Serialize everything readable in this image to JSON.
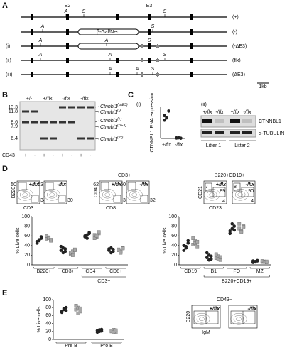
{
  "panel_a": {
    "letter": "A",
    "exon_labels": [
      "E2",
      "E3"
    ],
    "scale": "1kb",
    "insert": "β-Gal/Neo",
    "rows": [
      {
        "label": "(+)",
        "sites": [
          "A",
          "S",
          "S"
        ]
      },
      {
        "label": "(-)",
        "sites": [
          "A",
          "S"
        ]
      },
      {
        "marker": "(i)",
        "label": "(-ΔE3)",
        "sites": [
          "A",
          "A",
          "S"
        ]
      },
      {
        "marker": "(ii)",
        "label": "(flx)",
        "sites": [
          "A",
          "A",
          "S"
        ]
      },
      {
        "marker": "(iii)",
        "label": "(ΔE3)",
        "sites": [
          "A",
          "A",
          "S"
        ]
      }
    ]
  },
  "panel_b": {
    "letter": "B",
    "lanes": [
      "+/-",
      "+/flx",
      "-/flx",
      "-/flx"
    ],
    "sizes": [
      13.3,
      11.8,
      8.6,
      7.9,
      6.4
    ],
    "bands": [
      {
        "gene": "Ctnnbl1",
        "allele": "(-ΔE3)"
      },
      {
        "gene": "Ctnnbl1",
        "allele": "(-)"
      },
      {
        "gene": "Ctnnbl1",
        "allele": "(+)"
      },
      {
        "gene": "Ctnnbl1",
        "allele": "(ΔE3)"
      },
      {
        "gene": "Ctnnbl1",
        "allele": "(flx)"
      }
    ],
    "cd43_label": "CD43",
    "cd43": [
      "+",
      "-",
      "+",
      "-",
      "+",
      "-",
      "+",
      "-"
    ]
  },
  "panel_c": {
    "letter": "C",
    "i": {
      "label": "(i)",
      "y_label": "CTNNBL1 RNA expression",
      "categories": [
        "+/flx",
        "-/flx"
      ],
      "ylim": [
        0,
        140
      ],
      "series": [
        {
          "marker": "circle",
          "color": "#222222",
          "values": [
            [
              100,
              90,
              120,
              80
            ],
            [
              2,
              3,
              1,
              2
            ]
          ]
        }
      ]
    },
    "ii": {
      "label": "(ii)",
      "lanes": [
        "+/flx",
        "-/flx",
        "+/flx",
        "-/flx"
      ],
      "proteins": [
        "CTNNBL1",
        "α-TUBULIN"
      ],
      "litters": [
        "Litter 1",
        "Litter 2"
      ]
    }
  },
  "panel_d": {
    "letter": "D",
    "flow_groups": [
      {
        "y_axis": "B220",
        "x_axis": "CD3",
        "plots": [
          {
            "genotype": "+/flx",
            "gates": [
              50,
              34
            ]
          },
          {
            "genotype": "-/flx",
            "gates": [
              53,
              30
            ]
          }
        ]
      },
      {
        "title": "CD3+",
        "y_axis": "CD4",
        "x_axis": "CD8",
        "plots": [
          {
            "genotype": "+/flx",
            "gates": [
              62,
              31
            ]
          },
          {
            "genotype": "-/flx",
            "gates": [
              60,
              32
            ]
          }
        ]
      },
      {
        "title": "B220+CD19+",
        "y_axis": "CD21",
        "x_axis": "CD23",
        "plots": [
          {
            "genotype": "+/flx",
            "gates": [
              7,
              89,
              4
            ]
          },
          {
            "genotype": "-/flx",
            "gates": [
              8,
              90,
              4
            ]
          }
        ]
      }
    ],
    "charts": [
      {
        "y_label": "% Live cells",
        "categories": [
          "B220+",
          "CD3+",
          "CD4+",
          "CD8+"
        ],
        "group_label": "CD3+",
        "ylim": [
          0,
          100
        ],
        "yticks": [
          0,
          20,
          40,
          60,
          80,
          100
        ],
        "series": [
          {
            "marker": "circle",
            "color": "#222222",
            "values": [
              [
                48,
                52,
                55,
                45,
                50,
                58
              ],
              [
                30,
                35,
                28,
                38,
                25,
                33
              ],
              [
                60,
                55,
                65,
                58,
                62,
                67
              ],
              [
                30,
                35,
                28,
                33,
                25,
                32
              ]
            ]
          },
          {
            "marker": "square",
            "color": "#a8a8a8",
            "values": [
              [
                53,
                57,
                50,
                60,
                55,
                52
              ],
              [
                22,
                28,
                30,
                25,
                20,
                32
              ],
              [
                62,
                58,
                65,
                55,
                60,
                68
              ],
              [
                32,
                28,
                35,
                30,
                25,
                34
              ]
            ]
          }
        ]
      },
      {
        "y_label": "% Live cells",
        "categories": [
          "CD19",
          "B1",
          "FO",
          "MZ"
        ],
        "group_label": "B220+CD19+",
        "ylim": [
          0,
          100
        ],
        "yticks": [
          0,
          20,
          40,
          60,
          80,
          100
        ],
        "series": [
          {
            "marker": "circle",
            "color": "#222222",
            "values": [
              [
                40,
                35,
                45,
                30,
                38,
                50
              ],
              [
                15,
                20,
                12,
                25,
                10,
                18
              ],
              [
                70,
                75,
                80,
                65,
                85,
                72
              ],
              [
                8,
                6,
                9,
                5,
                7,
                8
              ]
            ]
          },
          {
            "marker": "square",
            "color": "#a8a8a8",
            "values": [
              [
                42,
                50,
                38,
                55,
                45,
                48
              ],
              [
                14,
                18,
                10,
                22,
                12,
                16
              ],
              [
                75,
                70,
                80,
                85,
                68,
                78
              ],
              [
                6,
                7,
                5,
                8,
                6,
                7
              ]
            ]
          }
        ]
      }
    ]
  },
  "panel_e": {
    "letter": "E",
    "chart": {
      "y_label": "% Live cells",
      "categories": [
        "Pre B",
        "Pro B"
      ],
      "ylim": [
        0,
        100
      ],
      "yticks": [
        0,
        20,
        40,
        60,
        80,
        100
      ],
      "series": [
        {
          "marker": "circle",
          "color": "#222222",
          "values": [
            [
              70,
              75,
              80,
              68,
              78,
              72
            ],
            [
              22,
              20,
              25,
              18,
              24,
              21
            ]
          ]
        },
        {
          "marker": "square",
          "color": "#a8a8a8",
          "values": [
            [
              75,
              80,
              70,
              85,
              65,
              78
            ],
            [
              20,
              24,
              18,
              22,
              19,
              23
            ]
          ]
        }
      ]
    },
    "flow": {
      "title": "CD43−",
      "y_axis": "B220",
      "x_axis": "IgM",
      "plots": [
        {
          "genotype": "+/flx"
        },
        {
          "genotype": "-/flx"
        }
      ]
    }
  }
}
